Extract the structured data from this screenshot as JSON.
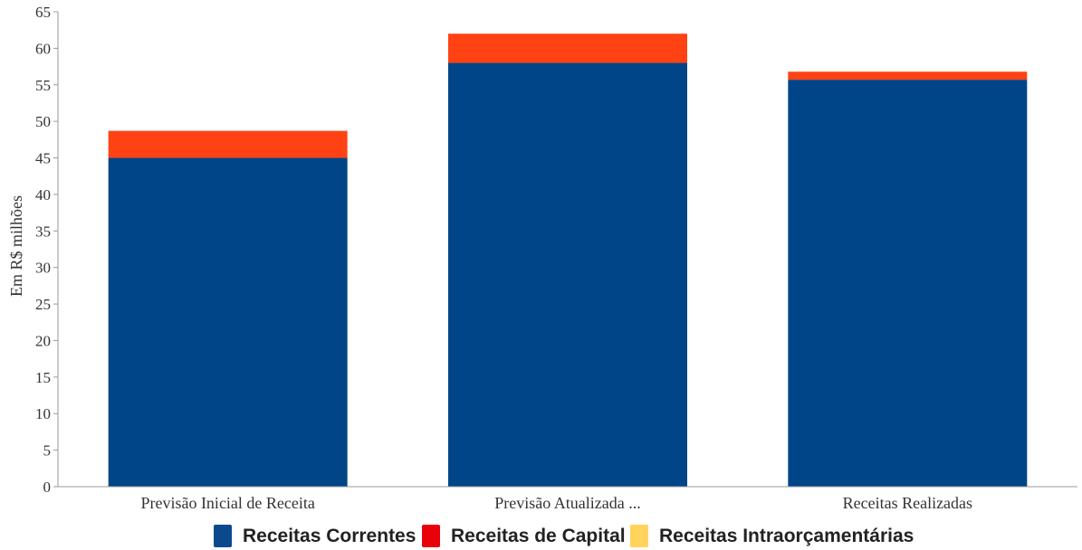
{
  "chart_data": {
    "type": "bar",
    "stacked": true,
    "categories": [
      "Previsão Inicial de Receita",
      "Previsão Atualizada ...",
      "Receitas Realizadas"
    ],
    "series": [
      {
        "name": "Receitas Correntes",
        "color": "#004587",
        "values": [
          45.0,
          58.0,
          55.7
        ]
      },
      {
        "name": "Receitas de Capital",
        "color": "#ff4214",
        "values": [
          3.7,
          4.0,
          1.1
        ]
      },
      {
        "name": "Receitas Intraorçamentárias",
        "color": "#ffd35c",
        "values": [
          0,
          0,
          0
        ]
      }
    ],
    "legend_colors": [
      "#0a4a8c",
      "#e8000b",
      "#ffd35c"
    ],
    "ylabel": "Em R$ milhões",
    "ylim": [
      0,
      65
    ],
    "yticks": [
      0,
      5,
      10,
      15,
      20,
      25,
      30,
      35,
      40,
      45,
      50,
      55,
      60,
      65
    ],
    "grid": false,
    "legend_position": "bottom"
  }
}
